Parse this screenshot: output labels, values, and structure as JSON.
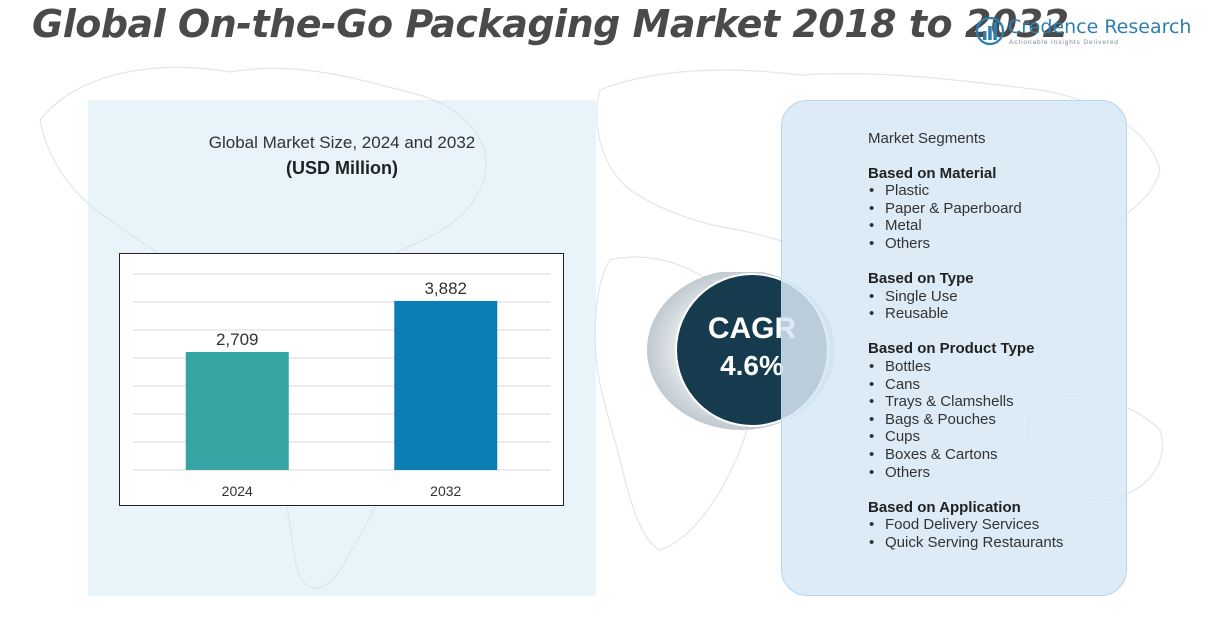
{
  "title": "Global On-the-Go Packaging Market 2018 to 2032",
  "logo": {
    "name": "Credence Research",
    "tagline": "Actionable Insights Delivered"
  },
  "chart_data": {
    "type": "bar",
    "title": "Global Market Size, 2024 and 2032",
    "unit": "(USD Million)",
    "categories": [
      "2024",
      "2032"
    ],
    "values": [
      2709,
      3882
    ],
    "value_labels": [
      "2,709",
      "3,882"
    ],
    "colors": [
      "#35a5a3",
      "#0b7eb3"
    ],
    "ylim": [
      0,
      4500
    ],
    "grid": true
  },
  "cagr": {
    "label": "CAGR",
    "value": "4.6%"
  },
  "segments": {
    "heading": "Market Segments",
    "groups": [
      {
        "title": "Based on Material",
        "items": [
          "Plastic",
          "Paper & Paperboard",
          "Metal",
          "Others"
        ]
      },
      {
        "title": "Based on Type",
        "items": [
          "Single Use",
          "Reusable"
        ]
      },
      {
        "title": "Based on Product Type",
        "items": [
          "Bottles",
          "Cans",
          "Trays & Clamshells",
          "Bags & Pouches",
          "Cups",
          "Boxes & Cartons",
          "Others"
        ]
      },
      {
        "title": "Based on Application",
        "items": [
          "Food Delivery Services",
          "Quick Serving Restaurants"
        ]
      }
    ]
  },
  "colors": {
    "title": "#4a4a4a",
    "cagr_circle": "#163a4e",
    "panel_blue": "#d6e8f5"
  }
}
